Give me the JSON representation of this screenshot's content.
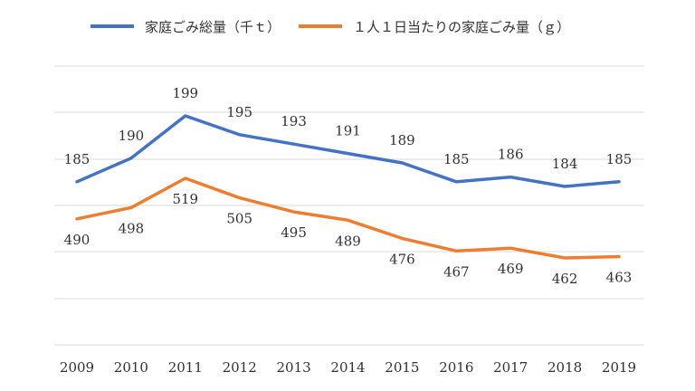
{
  "chart_data": {
    "type": "line",
    "title": "",
    "xlabel": "",
    "ylabel": "",
    "categories": [
      "2009",
      "2010",
      "2011",
      "2012",
      "2013",
      "2014",
      "2015",
      "2016",
      "2017",
      "2018",
      "2019"
    ],
    "series": [
      {
        "name": "家庭ごみ総量（千ｔ）",
        "color": "#4472C4",
        "values": [
          185,
          190,
          199,
          195,
          193,
          191,
          189,
          185,
          186,
          184,
          185
        ],
        "labels": [
          "185",
          "190",
          "199",
          "195",
          "193",
          "191",
          "189",
          "185",
          "186",
          "184",
          "185"
        ]
      },
      {
        "name": "１人１日当たりの家庭ごみ量（ｇ）",
        "color": "#ED7D31",
        "values": [
          490,
          498,
          519,
          505,
          495,
          489,
          476,
          467,
          469,
          462,
          463
        ],
        "labels": [
          "490",
          "498",
          "519",
          "505",
          "495",
          "489",
          "476",
          "467",
          "469",
          "462",
          "463"
        ]
      }
    ],
    "grid": true,
    "legend_position": "top"
  }
}
